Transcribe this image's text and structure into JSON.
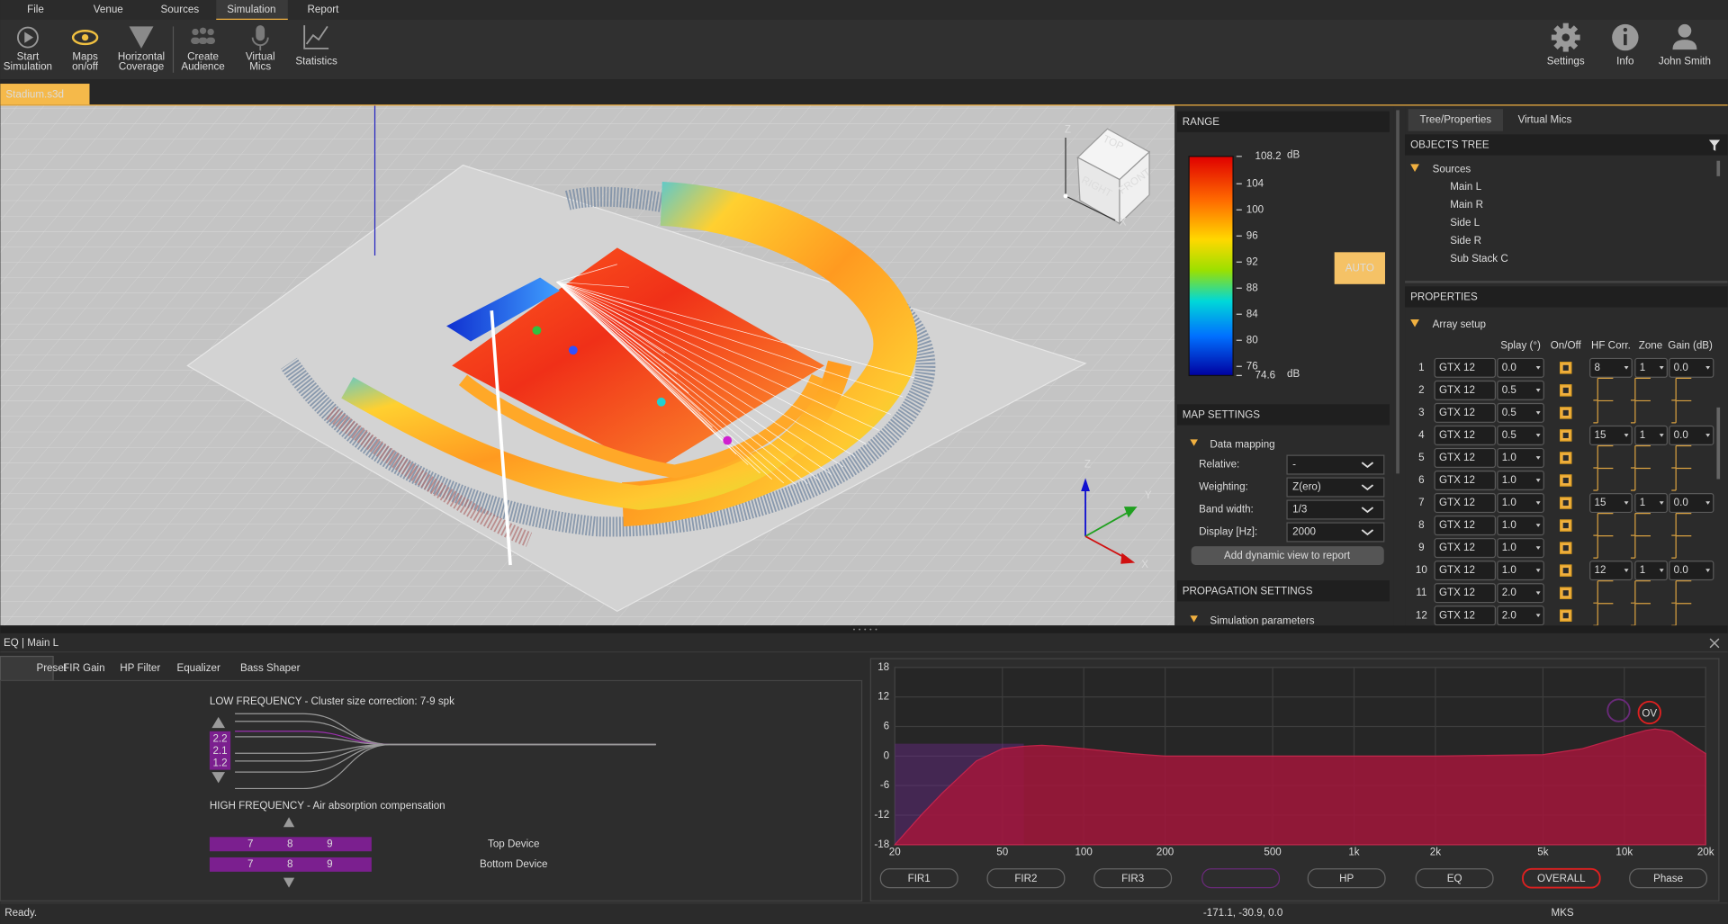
{
  "menu": [
    "File",
    "Venue",
    "Sources",
    "Simulation",
    "Report"
  ],
  "toolbar": [
    [
      "Start",
      "Simulation"
    ],
    [
      "Maps",
      "on/off"
    ],
    [
      "Horizontal",
      "Coverage"
    ],
    [
      "Create",
      "Audience"
    ],
    [
      "Virtual",
      "Mics"
    ],
    [
      "Statistics"
    ]
  ],
  "account": [
    "Settings",
    "Info",
    "John Smith"
  ],
  "document_tab": "Stadium.s3d",
  "viewport": {
    "cube_labels": [
      "TOP",
      "RIGHT",
      "FRONT"
    ],
    "cube_axes": [
      "Z",
      "X"
    ],
    "gizmo_axes": [
      "Z",
      "Y",
      "X"
    ]
  },
  "range": {
    "title": "RANGE",
    "unit": "dB",
    "max": 108.2,
    "min": 74.6,
    "ticks": [
      104,
      100,
      96,
      92,
      88,
      84,
      80,
      76
    ],
    "auto": "AUTO"
  },
  "map_settings": {
    "title": "MAP SETTINGS",
    "section": "Data mapping",
    "fields": [
      [
        "Relative:",
        "-"
      ],
      [
        "Weighting:",
        "Z(ero)"
      ],
      [
        "Band width:",
        "1/3"
      ],
      [
        "Display [Hz]:",
        "2000"
      ]
    ],
    "button": "Add dynamic view to report"
  },
  "propagation": {
    "title": "PROPAGATION SETTINGS",
    "section": "Simulation parameters"
  },
  "right_panel": {
    "tabs": [
      "Tree/Properties",
      "Virtual Mics"
    ],
    "tree_title": "OBJECTS TREE",
    "root": "Sources",
    "items": [
      "Main L",
      "Main R",
      "Side L",
      "Side R",
      "Sub Stack C"
    ],
    "properties_title": "PROPERTIES",
    "section": "Array setup",
    "columns": [
      "Splay (°)",
      "On/Off",
      "HF Corr.",
      "Zone",
      "Gain (dB)"
    ],
    "rows": [
      [
        "1",
        "GTX 12",
        "0.0",
        "8",
        "1",
        "0.0"
      ],
      [
        "2",
        "GTX 12",
        "0.5"
      ],
      [
        "3",
        "GTX 12",
        "0.5"
      ],
      [
        "4",
        "GTX 12",
        "0.5",
        "15",
        "1",
        "0.0"
      ],
      [
        "5",
        "GTX 12",
        "1.0"
      ],
      [
        "6",
        "GTX 12",
        "1.0"
      ],
      [
        "7",
        "GTX 12",
        "1.0",
        "15",
        "1",
        "0.0"
      ],
      [
        "8",
        "GTX 12",
        "1.0"
      ],
      [
        "9",
        "GTX 12",
        "1.0"
      ],
      [
        "10",
        "GTX 12",
        "1.0",
        "12",
        "1",
        "0.0"
      ],
      [
        "11",
        "GTX 12",
        "2.0"
      ],
      [
        "12",
        "GTX 12",
        "2.0"
      ]
    ]
  },
  "eq": {
    "header": "EQ | Main L",
    "tabs": [
      "Preset",
      "FIR Gain",
      "HP Filter",
      "Equalizer",
      "Bass Shaper"
    ],
    "low_title": "LOW FREQUENCY - Cluster size correction: 7-9 spk",
    "low_values": [
      "2.2",
      "2.1",
      "1.2"
    ],
    "high_title": "HIGH FREQUENCY - Air absorption compensation",
    "devices": [
      {
        "name": "Top Device",
        "values": [
          "7",
          "8",
          "9"
        ]
      },
      {
        "name": "Bottom Device",
        "values": [
          "7",
          "8",
          "9"
        ]
      }
    ],
    "buttons": [
      "FIR1",
      "FIR2",
      "FIR3",
      "HP",
      "EQ",
      "OVERALL",
      "Phase"
    ],
    "annotation": "OV"
  },
  "chart_data": {
    "type": "area",
    "color": "#a3163b",
    "log_x": true,
    "grid": true,
    "xlim": [
      20,
      20000
    ],
    "ylim": [
      -18,
      18
    ],
    "xticks": [
      20,
      50,
      100,
      200,
      500,
      {
        "value": 1000,
        "label": "1k"
      },
      {
        "value": 2000,
        "label": "2k"
      },
      {
        "value": 5000,
        "label": "5k"
      },
      {
        "value": 10000,
        "label": "10k"
      },
      {
        "value": 20000,
        "label": "20k"
      }
    ],
    "yticks": [
      18,
      12,
      6,
      0,
      -6,
      -12,
      -18
    ],
    "x": [
      20,
      25,
      30,
      40,
      50,
      60,
      70,
      80,
      100,
      150,
      200,
      300,
      500,
      1000,
      2000,
      5000,
      7000,
      10000,
      12000,
      13000,
      15000,
      17000,
      20000
    ],
    "values": [
      -18,
      -12,
      -7.5,
      -1,
      1.5,
      2,
      2.2,
      2,
      1.5,
      0.5,
      0,
      0,
      0,
      0,
      0,
      0.3,
      1.5,
      4,
      5.2,
      5.5,
      5,
      3,
      0.5
    ]
  },
  "status": {
    "state": "Ready.",
    "coords": "-171.1, -30.9, 0.0",
    "units": "MKS"
  }
}
